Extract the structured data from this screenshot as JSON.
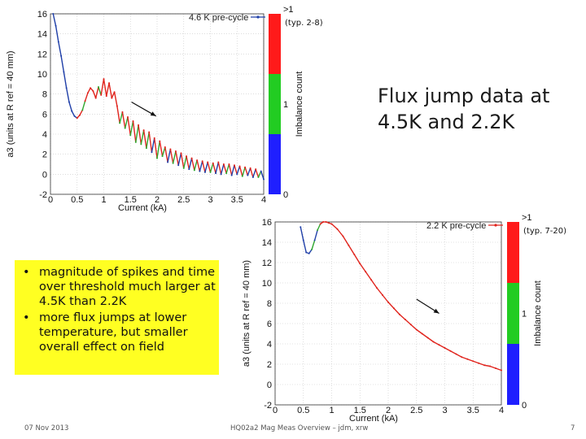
{
  "slide": {
    "title": "Flux jump data at 4.5K and 2.2K",
    "bullets": [
      "magnitude of spikes and time over threshold much larger at 4.5K than 2.2K",
      "more flux jumps at lower temperature, but smaller overall effect on field"
    ],
    "footer_date": "07 Nov 2013",
    "footer_center": "HQ02a2 Mag Meas Overview – jdm, xrw",
    "page_number": "7"
  },
  "colors": {
    "line_blue": "#1f3fa8",
    "line_red": "#e0231c",
    "line_green": "#2fa82f",
    "bar_red": "#ff1a1a",
    "bar_green": "#22cc22",
    "bar_blue": "#1f1fff",
    "note_bg": "#ffff22"
  },
  "chart_data": [
    {
      "type": "line",
      "legend": "4.6 K pre-cycle",
      "xlabel": "Current (kA)",
      "ylabel": "a3 (units at R ref = 40 mm)",
      "xlim": [
        0,
        4
      ],
      "ylim": [
        -2,
        16
      ],
      "xticks": [
        "0",
        "0.5",
        "1",
        "1.5",
        "2",
        "2.5",
        "3",
        "3.5",
        "4"
      ],
      "yticks": [
        "-2",
        "0",
        "2",
        "4",
        "6",
        "8",
        "10",
        "12",
        "14",
        "16"
      ],
      "colorbar": {
        "label": "Imbalance count",
        "top": ">1",
        "mid": "1",
        "bottom": "0",
        "note": "(typ. 2-8)"
      },
      "points": [
        [
          0.05,
          16
        ],
        [
          0.1,
          14.8
        ],
        [
          0.15,
          13.2
        ],
        [
          0.2,
          11.8
        ],
        [
          0.25,
          10.2
        ],
        [
          0.3,
          8.6
        ],
        [
          0.35,
          7.2
        ],
        [
          0.4,
          6.3
        ],
        [
          0.45,
          5.8
        ],
        [
          0.5,
          5.6
        ],
        [
          0.55,
          5.9
        ],
        [
          0.6,
          6.4
        ],
        [
          0.65,
          7.3
        ],
        [
          0.7,
          8.1
        ],
        [
          0.75,
          8.6
        ],
        [
          0.8,
          8.3
        ],
        [
          0.85,
          7.6
        ],
        [
          0.9,
          8.7
        ],
        [
          0.95,
          7.9
        ],
        [
          1.0,
          9.5
        ],
        [
          1.05,
          7.8
        ],
        [
          1.1,
          9.1
        ],
        [
          1.15,
          7.6
        ],
        [
          1.2,
          8.2
        ],
        [
          1.25,
          6.8
        ],
        [
          1.3,
          5.1
        ],
        [
          1.35,
          6.2
        ],
        [
          1.4,
          4.6
        ],
        [
          1.45,
          5.7
        ],
        [
          1.5,
          3.9
        ],
        [
          1.55,
          5.3
        ],
        [
          1.6,
          3.2
        ],
        [
          1.65,
          4.9
        ],
        [
          1.7,
          3.0
        ],
        [
          1.75,
          4.4
        ],
        [
          1.8,
          2.6
        ],
        [
          1.85,
          4.2
        ],
        [
          1.9,
          2.2
        ],
        [
          1.95,
          3.6
        ],
        [
          2.0,
          1.6
        ],
        [
          2.05,
          3.3
        ],
        [
          2.1,
          1.8
        ],
        [
          2.15,
          2.7
        ],
        [
          2.2,
          1.2
        ],
        [
          2.25,
          2.5
        ],
        [
          2.3,
          1.1
        ],
        [
          2.35,
          2.3
        ],
        [
          2.4,
          0.9
        ],
        [
          2.45,
          2.1
        ],
        [
          2.5,
          0.6
        ],
        [
          2.55,
          1.8
        ],
        [
          2.6,
          0.5
        ],
        [
          2.65,
          1.6
        ],
        [
          2.7,
          0.4
        ],
        [
          2.75,
          1.4
        ],
        [
          2.8,
          0.3
        ],
        [
          2.85,
          1.3
        ],
        [
          2.9,
          0.2
        ],
        [
          2.95,
          1.2
        ],
        [
          3.0,
          0.2
        ],
        [
          3.05,
          1.1
        ],
        [
          3.1,
          0.1
        ],
        [
          3.15,
          1.2
        ],
        [
          3.2,
          0.0
        ],
        [
          3.25,
          1.0
        ],
        [
          3.3,
          0.1
        ],
        [
          3.35,
          1.0
        ],
        [
          3.4,
          -0.1
        ],
        [
          3.45,
          0.9
        ],
        [
          3.5,
          0.0
        ],
        [
          3.55,
          0.8
        ],
        [
          3.6,
          -0.2
        ],
        [
          3.65,
          0.7
        ],
        [
          3.7,
          -0.1
        ],
        [
          3.75,
          0.6
        ],
        [
          3.8,
          -0.3
        ],
        [
          3.85,
          0.5
        ],
        [
          3.9,
          -0.3
        ],
        [
          3.95,
          0.3
        ],
        [
          4.0,
          -0.5
        ]
      ],
      "segment_colors": [
        "line_blue",
        "line_blue",
        "line_blue",
        "line_blue",
        "line_blue",
        "line_blue",
        "line_blue",
        "line_blue",
        "line_blue",
        "line_red",
        "line_red",
        "line_green",
        "line_red",
        "line_red",
        "line_red",
        "line_red",
        "line_red",
        "line_green",
        "line_red",
        "line_red",
        "line_red",
        "line_red",
        "line_red",
        "line_red",
        "line_red",
        "line_green",
        "line_red",
        "line_green",
        "line_red",
        "line_green",
        "line_red",
        "line_green",
        "line_red",
        "line_green",
        "line_red",
        "line_green",
        "line_red",
        "line_blue",
        "line_red",
        "line_green",
        "line_red",
        "line_green",
        "line_red",
        "line_blue",
        "line_red",
        "line_green",
        "line_red",
        "line_blue",
        "line_red",
        "line_green",
        "line_red",
        "line_blue",
        "line_red",
        "line_green",
        "line_red",
        "line_blue",
        "line_red",
        "line_blue",
        "line_red",
        "line_green",
        "line_red",
        "line_blue",
        "line_red",
        "line_blue",
        "line_red",
        "line_green",
        "line_red",
        "line_blue",
        "line_red",
        "line_blue",
        "line_red",
        "line_green",
        "line_red",
        "line_blue",
        "line_red",
        "line_blue",
        "line_red",
        "line_green",
        "line_blue"
      ]
    },
    {
      "type": "line",
      "legend": "2.2 K pre-cycle",
      "xlabel": "Current (kA)",
      "ylabel": "a3 (units at R ref = 40 mm)",
      "xlim": [
        0,
        4
      ],
      "ylim": [
        -2,
        16
      ],
      "xticks": [
        "0",
        "0.5",
        "1",
        "1.5",
        "2",
        "2.5",
        "3",
        "3.5",
        "4"
      ],
      "yticks": [
        "-2",
        "0",
        "2",
        "4",
        "6",
        "8",
        "10",
        "12",
        "14",
        "16"
      ],
      "colorbar": {
        "label": "Imbalance count",
        "top": ">1",
        "mid": "1",
        "bottom": "0",
        "note": "(typ. 7-20)"
      },
      "points": [
        [
          0.45,
          15.5
        ],
        [
          0.5,
          14.2
        ],
        [
          0.55,
          13.0
        ],
        [
          0.6,
          12.9
        ],
        [
          0.65,
          13.3
        ],
        [
          0.7,
          14.2
        ],
        [
          0.75,
          15.2
        ],
        [
          0.8,
          15.8
        ],
        [
          0.85,
          16.0
        ],
        [
          0.9,
          16.0
        ],
        [
          0.95,
          15.9
        ],
        [
          1.0,
          15.8
        ],
        [
          1.1,
          15.3
        ],
        [
          1.2,
          14.6
        ],
        [
          1.3,
          13.7
        ],
        [
          1.4,
          12.8
        ],
        [
          1.5,
          11.9
        ],
        [
          1.6,
          11.1
        ],
        [
          1.7,
          10.3
        ],
        [
          1.8,
          9.5
        ],
        [
          1.9,
          8.8
        ],
        [
          2.0,
          8.1
        ],
        [
          2.1,
          7.5
        ],
        [
          2.2,
          6.9
        ],
        [
          2.3,
          6.4
        ],
        [
          2.4,
          5.9
        ],
        [
          2.5,
          5.4
        ],
        [
          2.6,
          5.0
        ],
        [
          2.7,
          4.6
        ],
        [
          2.8,
          4.2
        ],
        [
          2.9,
          3.9
        ],
        [
          3.0,
          3.6
        ],
        [
          3.1,
          3.3
        ],
        [
          3.2,
          3.0
        ],
        [
          3.3,
          2.7
        ],
        [
          3.4,
          2.5
        ],
        [
          3.5,
          2.3
        ],
        [
          3.6,
          2.1
        ],
        [
          3.7,
          1.9
        ],
        [
          3.8,
          1.8
        ],
        [
          3.9,
          1.6
        ],
        [
          4.0,
          1.4
        ]
      ],
      "segment_colors": [
        "line_blue",
        "line_blue",
        "line_blue",
        "line_blue",
        "line_green",
        "line_blue",
        "line_green",
        "line_red",
        "line_red",
        "line_red",
        "line_red",
        "line_red",
        "line_red",
        "line_red",
        "line_red",
        "line_red",
        "line_red",
        "line_red",
        "line_red",
        "line_red",
        "line_red",
        "line_red",
        "line_red",
        "line_red",
        "line_red",
        "line_red",
        "line_red",
        "line_red",
        "line_red",
        "line_red",
        "line_red",
        "line_red",
        "line_red",
        "line_red",
        "line_red",
        "line_red",
        "line_red",
        "line_red",
        "line_red",
        "line_red",
        "line_red"
      ]
    }
  ]
}
